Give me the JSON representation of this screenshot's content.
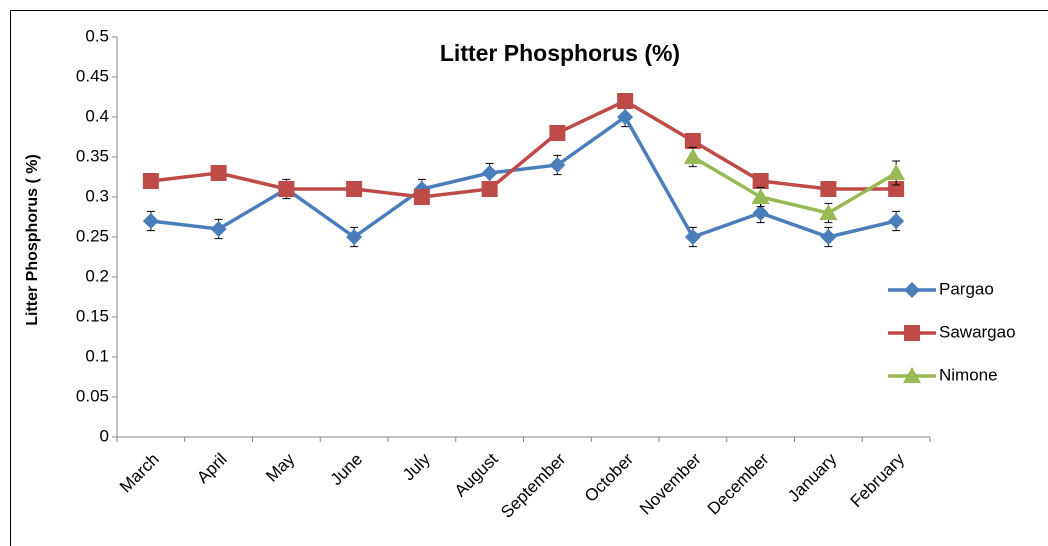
{
  "chart_data": {
    "type": "line",
    "title": "Litter Phosphorus (%)",
    "y_label": "Litter Phosphorus ( %)",
    "categories": [
      "March",
      "April",
      "May",
      "June",
      "July",
      "August",
      "September",
      "October",
      "November",
      "December",
      "January",
      "February"
    ],
    "series": [
      {
        "name": "Pargao",
        "color": "#4a7ebb",
        "marker": "diamond",
        "values": [
          0.27,
          0.26,
          0.31,
          0.25,
          0.31,
          0.33,
          0.34,
          0.4,
          0.25,
          0.28,
          0.25,
          0.27
        ],
        "errors": [
          0.012,
          0.012,
          0.012,
          0.012,
          0.012,
          0.012,
          0.012,
          0.012,
          0.012,
          0.012,
          0.012,
          0.012
        ]
      },
      {
        "name": "Sawargao",
        "color": "#be4b48",
        "marker": "square",
        "values": [
          0.32,
          0.33,
          0.31,
          0.31,
          0.3,
          0.31,
          0.38,
          0.42,
          0.37,
          0.32,
          0.31,
          0.31
        ]
      },
      {
        "name": "Nimone",
        "color": "#98b954",
        "marker": "triangle",
        "values": [
          null,
          null,
          null,
          null,
          null,
          null,
          null,
          null,
          0.35,
          0.3,
          0.28,
          0.33
        ],
        "errors": [
          null,
          null,
          null,
          null,
          null,
          null,
          null,
          null,
          0.012,
          0.012,
          0.012,
          0.015
        ]
      }
    ],
    "ylim": [
      0,
      0.5
    ],
    "yticks": [
      0,
      0.05,
      0.1,
      0.15,
      0.2,
      0.25,
      0.3,
      0.35,
      0.4,
      0.45,
      0.5
    ],
    "grid": false,
    "legend": "right"
  }
}
